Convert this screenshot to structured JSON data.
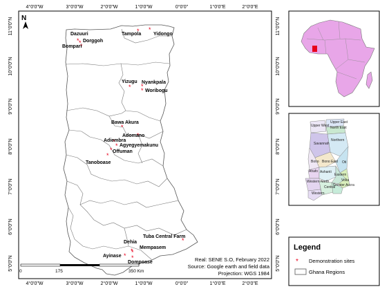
{
  "main_map": {
    "north_label": "N",
    "top_ticks": [
      "4°0'0\"W",
      "3°0'0\"W",
      "2°0'0\"W",
      "1°0'0\"W",
      "0°0'0\"",
      "1°0'0\"E",
      "2°0'0\"E"
    ],
    "bottom_ticks": [
      "4°0'0\"W",
      "3°0'0\"W",
      "2°0'0\"W",
      "1°0'0\"W",
      "0°0'0\"",
      "1°0'0\"E",
      "2°0'0\"E"
    ],
    "left_ticks": [
      "11°0'0\"N",
      "10°0'0\"N",
      "9°0'0\"N",
      "8°0'0\"N",
      "7°0'0\"N",
      "6°0'0\"N",
      "5°0'0\"N"
    ],
    "right_ticks": [
      "11°0'0\"N",
      "10°0'0\"N",
      "9°0'0\"N",
      "8°0'0\"N",
      "7°0'0\"N",
      "6°0'0\"N",
      "5°0'0\"N"
    ],
    "sites": [
      {
        "name": "Dazuuri"
      },
      {
        "name": "Dorggoh"
      },
      {
        "name": "Bompari"
      },
      {
        "name": "Tampola"
      },
      {
        "name": "Yidongo"
      },
      {
        "name": "Yizugu"
      },
      {
        "name": "Nyankpala"
      },
      {
        "name": "Woribogu"
      },
      {
        "name": "Bawa Akura"
      },
      {
        "name": "Adomano"
      },
      {
        "name": "Adiembra"
      },
      {
        "name": "Agyegyemakunu"
      },
      {
        "name": "Offuman"
      },
      {
        "name": "Tanoboase"
      },
      {
        "name": "Tuba Central Farm"
      },
      {
        "name": "Dehia"
      },
      {
        "name": "Mempasem"
      },
      {
        "name": "Ayinase"
      },
      {
        "name": "Dompoase"
      }
    ],
    "scale": {
      "zero": "0",
      "mid": "175",
      "end": "350 Km"
    },
    "credits": {
      "line1": "Real: SENE S.O, February 2022",
      "line2": "Source: Google earth and field data",
      "line3": "Projection: WGS 1984"
    }
  },
  "region_labels": [
    "Upper West",
    "Upper East",
    "North East",
    "Northern",
    "Savannah",
    "Bono",
    "Bono East",
    "Oti",
    "Ahafo",
    "Ashanti",
    "Eastern",
    "Volta",
    "Western North",
    "Central",
    "Greater Accra",
    "Western"
  ],
  "legend": {
    "title": "Legend",
    "item1": "Demonstration sites",
    "item2": "Ghana Regions"
  },
  "colors": {
    "africa_fill": "#e8a6e8",
    "ghana_highlight": "#e8001c",
    "site_marker": "#e8001c",
    "boundary": "#555555"
  }
}
